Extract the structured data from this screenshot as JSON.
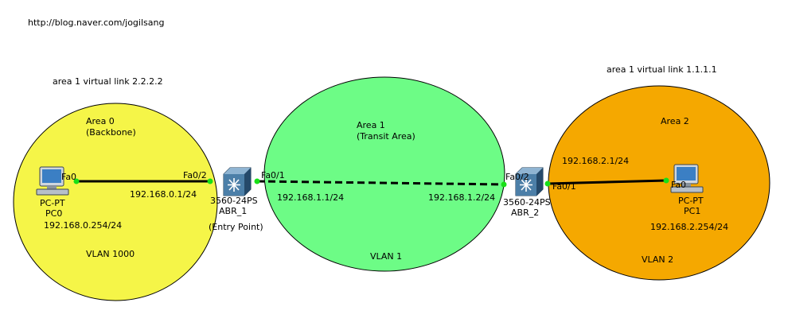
{
  "header": {
    "url": "http://blog.naver.com/jogilsang"
  },
  "colors": {
    "area0": "#f5f548",
    "area1": "#6dfc86",
    "area2": "#f5a800",
    "link": "#000000",
    "port_dot": "#17e017",
    "switch_body": "#4c7fa8",
    "pc_screen": "#3b7fc4"
  },
  "areas": {
    "area0": {
      "title": "Area 0",
      "subtitle": "(Backbone)",
      "vlan": "VLAN 1000",
      "virtual_link": "area 1 virtual link 2.2.2.2"
    },
    "area1": {
      "title": "Area 1",
      "subtitle": "(Transit Area)",
      "vlan": "VLAN 1"
    },
    "area2": {
      "title": "Area 2",
      "vlan": "VLAN 2",
      "virtual_link": "area 1 virtual link 1.1.1.1"
    }
  },
  "devices": {
    "pc0": {
      "icon": "pc-icon",
      "model": "PC-PT",
      "name": "PC0",
      "port": "Fa0",
      "ip": "192.168.0.254/24"
    },
    "pc1": {
      "icon": "pc-icon",
      "model": "PC-PT",
      "name": "PC1",
      "port": "Fa0",
      "ip": "192.168.2.254/24"
    },
    "abr1": {
      "icon": "multilayer-switch-icon",
      "model": "3560-24PS",
      "name": "ABR_1",
      "note": "(Entry Point)",
      "port_left": "Fa0/2",
      "port_right": "Fa0/1",
      "ip_left": "192.168.0.1/24",
      "ip_right": "192.168.1.1/24"
    },
    "abr2": {
      "icon": "multilayer-switch-icon",
      "model": "3560-24PS",
      "name": "ABR_2",
      "port_left": "Fa0/2",
      "port_right": "Fa0/1",
      "ip_left": "192.168.1.2/24",
      "ip_right": "192.168.2.1/24"
    }
  },
  "links": [
    {
      "from": "PC0",
      "to": "ABR_1",
      "style": "solid"
    },
    {
      "from": "ABR_1",
      "to": "ABR_2",
      "style": "dashed"
    },
    {
      "from": "ABR_2",
      "to": "PC1",
      "style": "solid"
    }
  ]
}
